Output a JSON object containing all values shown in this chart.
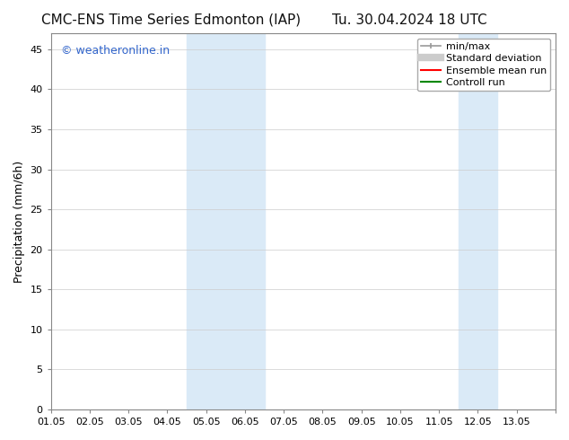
{
  "title_left": "CMC-ENS Time Series Edmonton (IAP)",
  "title_right": "Tu. 30.04.2024 18 UTC",
  "ylabel": "Precipitation (mm/6h)",
  "watermark": "© weatheronline.in",
  "watermark_color": "#3366cc",
  "xlim_start": 0.0,
  "xlim_end": 13.0,
  "ylim_min": 0,
  "ylim_max": 47,
  "yticks": [
    0,
    5,
    10,
    15,
    20,
    25,
    30,
    35,
    40,
    45
  ],
  "xtick_labels": [
    "01.05",
    "02.05",
    "03.05",
    "04.05",
    "05.05",
    "06.05",
    "07.05",
    "08.05",
    "09.05",
    "10.05",
    "11.05",
    "12.05",
    "13.05"
  ],
  "xtick_positions": [
    0,
    1,
    2,
    3,
    4,
    5,
    6,
    7,
    8,
    9,
    10,
    11,
    12,
    13
  ],
  "shaded_bands": [
    {
      "x_start": 3.5,
      "x_end": 5.5,
      "color": "#daeaf7"
    },
    {
      "x_start": 10.5,
      "x_end": 11.5,
      "color": "#daeaf7"
    }
  ],
  "legend_entries": [
    {
      "label": "min/max",
      "color": "#999999",
      "lw": 1.2
    },
    {
      "label": "Standard deviation",
      "color": "#cccccc",
      "lw": 6
    },
    {
      "label": "Ensemble mean run",
      "color": "#ff0000",
      "lw": 1.5
    },
    {
      "label": "Controll run",
      "color": "#008800",
      "lw": 1.5
    }
  ],
  "bg_color": "#ffffff",
  "plot_bg_color": "#ffffff",
  "grid_color": "#cccccc",
  "font_size_title": 11,
  "font_size_axis": 9,
  "font_size_tick": 8,
  "font_size_legend": 8,
  "font_size_watermark": 9
}
